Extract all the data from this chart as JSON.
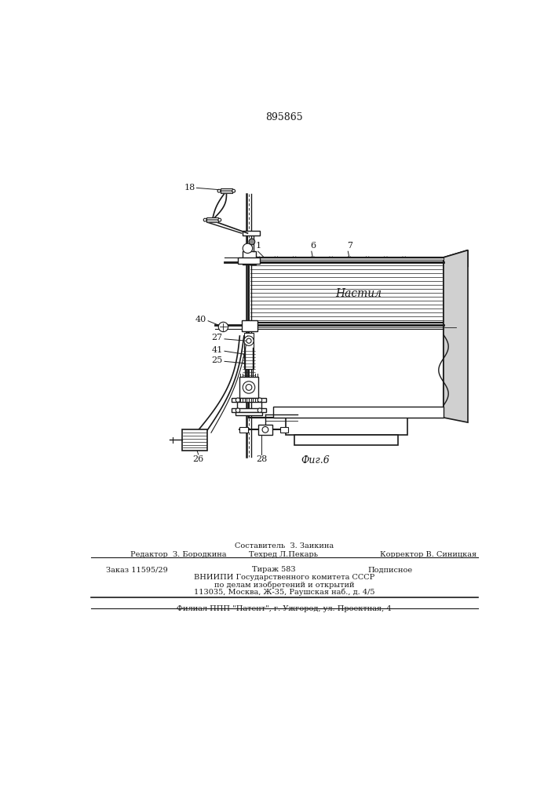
{
  "patent_number": "895865",
  "fig_label": "Фиг.6",
  "nastil_label": "Настил",
  "background_color": "#ffffff",
  "line_color": "#1a1a1a",
  "footer": {
    "sostavitel": "Составитель  З. Заикина",
    "redaktor": "Редактор  З. Бородкина",
    "tekhred": "Техред Л.Пекарь",
    "korrektor": "Корректор В. Синицкая",
    "zakaz": "Заказ 11595/29",
    "tirazh": "Тираж 583",
    "podpisnoe": "Подписное",
    "vnipi_line1": "ВНИИПИ Государственного комитета СССР",
    "vnipi_line2": "по делам изобретений и открытий",
    "vnipi_line3": "113035, Москва, Ж-35, Раушская наб., д. 4/5",
    "filial": "Филиал ППП \"Патент\", г. Ужгород, ул. Проектная, 4"
  }
}
